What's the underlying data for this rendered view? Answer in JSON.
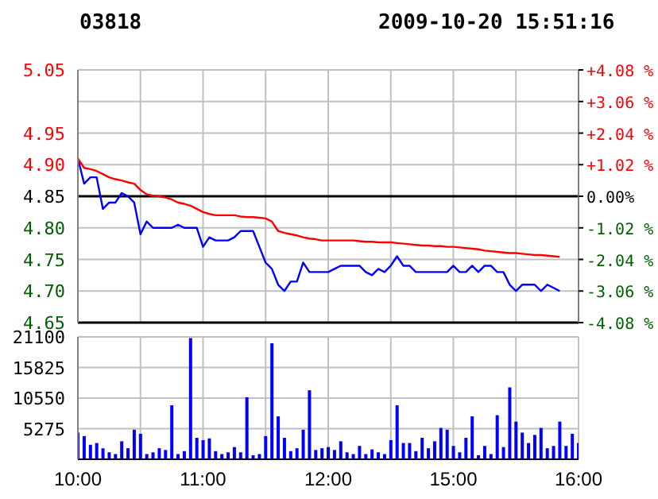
{
  "chart_data": [
    {
      "type": "line",
      "title": "03818",
      "subtitle": "2009-10-20 15:51:16",
      "categories": [
        null,
        null,
        null,
        null,
        null,
        null,
        null,
        null,
        null,
        null,
        null,
        null,
        null,
        null,
        null,
        null,
        null,
        null,
        null,
        null,
        null,
        null,
        null,
        null,
        null,
        null,
        null,
        null,
        null,
        null,
        null,
        null,
        null,
        null,
        null,
        null,
        null,
        null,
        null,
        null,
        null,
        null,
        null,
        null,
        null,
        null,
        null,
        null,
        null,
        null,
        null,
        null,
        null,
        null,
        null,
        null,
        null,
        null,
        null,
        null,
        null,
        null,
        null,
        null,
        null,
        null,
        null,
        null,
        null,
        null,
        null,
        null,
        null,
        null,
        null,
        null,
        null,
        null,
        null,
        null,
        null
      ],
      "series": [
        {
          "color": "#0000ff",
          "values": [
            4.91,
            4.87,
            4.88,
            4.88,
            4.83,
            4.84,
            4.84,
            4.855,
            4.85,
            4.84,
            4.79,
            4.81,
            4.8,
            4.8,
            4.8,
            4.8,
            4.805,
            4.8,
            4.8,
            4.8,
            4.77,
            4.785,
            4.78,
            4.78,
            4.78,
            4.785,
            4.795,
            4.795,
            4.795,
            4.77,
            4.745,
            4.735,
            4.71,
            4.7,
            4.715,
            4.715,
            4.745,
            4.73,
            4.73,
            4.73,
            4.73,
            4.735,
            4.74,
            4.74,
            4.74,
            4.74,
            4.73,
            4.725,
            4.735,
            4.73,
            4.74,
            4.755,
            4.74,
            4.74,
            4.73,
            4.73,
            4.73,
            4.73,
            4.73,
            4.73,
            4.74,
            4.73,
            4.73,
            4.74,
            4.73,
            4.74,
            4.74,
            4.73,
            4.73,
            4.71,
            4.7,
            4.71,
            4.71,
            4.71,
            4.7,
            4.71,
            4.705,
            4.7,
            null,
            null,
            null
          ]
        },
        {
          "color": "#ff0000",
          "values": [
            4.91,
            4.895,
            4.893,
            4.89,
            4.885,
            4.88,
            4.877,
            4.875,
            4.872,
            4.87,
            4.86,
            4.853,
            4.851,
            4.85,
            4.848,
            4.845,
            4.84,
            4.838,
            4.835,
            4.83,
            4.825,
            4.822,
            4.82,
            4.82,
            4.82,
            4.82,
            4.818,
            4.817,
            4.817,
            4.816,
            4.815,
            4.81,
            4.795,
            4.792,
            4.79,
            4.788,
            4.785,
            4.783,
            4.782,
            4.78,
            4.78,
            4.78,
            4.78,
            4.78,
            4.78,
            4.779,
            4.778,
            4.778,
            4.777,
            4.777,
            4.777,
            4.776,
            4.775,
            4.774,
            4.773,
            4.772,
            4.772,
            4.771,
            4.771,
            4.77,
            4.77,
            4.769,
            4.768,
            4.767,
            4.766,
            4.764,
            4.763,
            4.762,
            4.761,
            4.76,
            4.76,
            4.759,
            4.758,
            4.757,
            4.757,
            4.756,
            4.755,
            4.754,
            null,
            null,
            null
          ]
        }
      ],
      "ylim": [
        4.65,
        5.05
      ],
      "yticks": [
        4.65,
        {
          "value": 4.7,
          "label": "4.70"
        },
        4.75,
        {
          "value": 4.8,
          "label": "4.80"
        },
        4.85,
        {
          "value": 4.9,
          "label": "4.90"
        },
        4.95,
        {
          "value": 5.0,
          "label": null
        },
        5.05
      ],
      "y2lim": [
        -4.08,
        4.08
      ],
      "y2ticks": [
        {
          "value": -4.08,
          "label": "-4.08 %"
        },
        {
          "value": -3.06,
          "label": "-3.06 %"
        },
        {
          "value": -2.04,
          "label": "-2.04 %"
        },
        {
          "value": -1.02,
          "label": "-1.02 %"
        },
        {
          "value": 0,
          "label": "0.00%"
        },
        {
          "value": 1.02,
          "label": "+1.02 %"
        },
        {
          "value": 2.04,
          "label": "+2.04 %"
        },
        {
          "value": 3.06,
          "label": "+3.06 %"
        },
        {
          "value": 4.08,
          "label": "+4.08 %"
        }
      ],
      "ref_lines": [
        {
          "axis": "y",
          "value": 4.85,
          "color": "#000000"
        }
      ],
      "grid": true,
      "marker": "none",
      "line_style": "solid",
      "tick_labels": "y"
    },
    {
      "type": "bar",
      "categories": [
        "10:00",
        null,
        null,
        null,
        null,
        null,
        null,
        null,
        null,
        null,
        null,
        null,
        null,
        null,
        null,
        null,
        null,
        null,
        null,
        null,
        "11:00",
        null,
        null,
        null,
        null,
        null,
        null,
        null,
        null,
        null,
        null,
        null,
        null,
        null,
        null,
        null,
        null,
        null,
        null,
        null,
        "12:00",
        null,
        null,
        null,
        null,
        null,
        null,
        null,
        null,
        null,
        null,
        null,
        null,
        null,
        null,
        null,
        null,
        null,
        null,
        null,
        "15:00",
        null,
        null,
        null,
        null,
        null,
        null,
        null,
        null,
        null,
        null,
        null,
        null,
        null,
        null,
        null,
        null,
        null,
        null,
        null,
        "16:00"
      ],
      "series": [
        {
          "color": "#0000ff",
          "values": [
            4600,
            4000,
            2500,
            2800,
            1900,
            1200,
            900,
            3100,
            1900,
            5100,
            4400,
            900,
            1200,
            1900,
            1600,
            9300,
            900,
            1400,
            20900,
            3700,
            3300,
            3600,
            1400,
            900,
            1200,
            2100,
            1200,
            10700,
            700,
            900,
            4000,
            20000,
            7400,
            3700,
            1400,
            1900,
            5100,
            11900,
            1600,
            1900,
            2100,
            1600,
            3100,
            1200,
            900,
            2300,
            900,
            1700,
            1200,
            900,
            3300,
            9300,
            2800,
            2800,
            1400,
            3700,
            1900,
            3100,
            5400,
            5100,
            2300,
            1200,
            3700,
            7400,
            700,
            2300,
            900,
            7600,
            2100,
            12400,
            6500,
            4600,
            2800,
            4200,
            5400,
            1900,
            2300,
            6500,
            2300,
            4400,
            2800
          ]
        }
      ],
      "ylim": [
        0,
        21100
      ],
      "yticks": [
        {
          "value": 0,
          "label": null
        },
        5275,
        10550,
        15825,
        21100
      ],
      "grid": true
    }
  ]
}
